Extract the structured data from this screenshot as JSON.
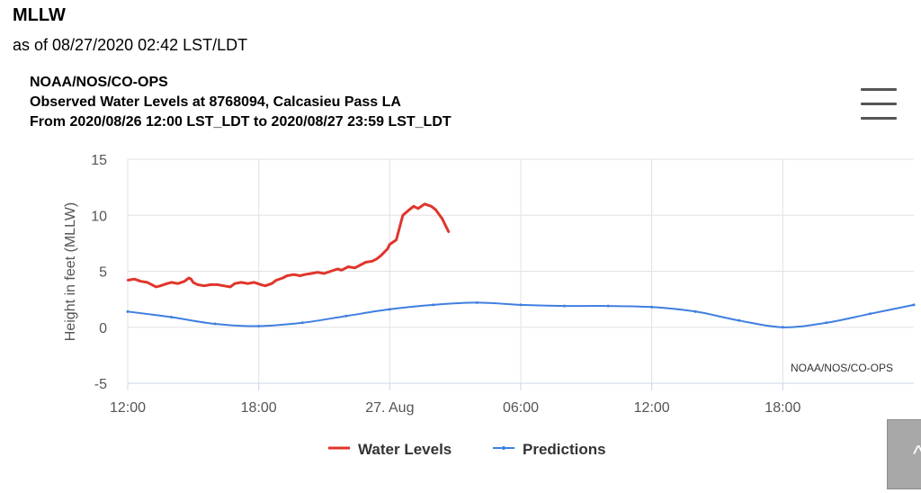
{
  "page": {
    "title": "MLLW",
    "as_of": "as of 08/27/2020 02:42 LST/LDT"
  },
  "chart_header": {
    "line1": "NOAA/NOS/CO-OPS",
    "line2": "Observed Water Levels at 8768094, Calcasieu Pass LA",
    "line3": "From 2020/08/26 12:00 LST_LDT to 2020/08/27 23:59 LST_LDT"
  },
  "menu_icon": "hamburger-menu-icon",
  "corner_button": {
    "icon": "chevron-up-icon",
    "glyph": "^"
  },
  "colors": {
    "water_levels": "#e0352b",
    "predictions": "#3f7fe0",
    "grid": "#e2e2e2",
    "axis_text": "#555555"
  },
  "chart_data": {
    "type": "line",
    "ylabel": "Height in feet (MLLW)",
    "ylim": [
      -5,
      15
    ],
    "yticks": [
      -5,
      0,
      5,
      10,
      15
    ],
    "xlim_hours": [
      0,
      36
    ],
    "xticks": [
      {
        "hour": 0,
        "label": "12:00"
      },
      {
        "hour": 6,
        "label": "18:00"
      },
      {
        "hour": 12,
        "label": "27. Aug"
      },
      {
        "hour": 18,
        "label": "06:00"
      },
      {
        "hour": 24,
        "label": "12:00"
      },
      {
        "hour": 30,
        "label": "18:00"
      }
    ],
    "credit": "NOAA/NOS/CO-OPS",
    "legend": [
      "Water Levels",
      "Predictions"
    ],
    "series": [
      {
        "name": "Water Levels",
        "x": [
          0,
          0.3,
          0.6,
          0.9,
          1.1,
          1.3,
          1.5,
          1.8,
          2.0,
          2.3,
          2.6,
          2.8,
          2.9,
          3.0,
          3.2,
          3.5,
          3.8,
          4.1,
          4.4,
          4.7,
          4.9,
          5.2,
          5.5,
          5.8,
          6.1,
          6.3,
          6.6,
          6.8,
          7.1,
          7.3,
          7.6,
          7.9,
          8.1,
          8.4,
          8.7,
          9.0,
          9.3,
          9.6,
          9.8,
          10.1,
          10.4,
          10.7,
          10.9,
          11.2,
          11.4,
          11.6,
          11.8,
          11.9,
          12.0,
          12.3,
          12.6,
          12.9,
          13.1,
          13.3,
          13.6,
          13.9,
          14.1,
          14.4,
          14.7
        ],
        "values": [
          4.2,
          4.3,
          4.1,
          4.0,
          3.8,
          3.6,
          3.7,
          3.9,
          4.0,
          3.9,
          4.1,
          4.4,
          4.3,
          4.0,
          3.8,
          3.7,
          3.8,
          3.8,
          3.7,
          3.6,
          3.9,
          4.0,
          3.9,
          4.0,
          3.8,
          3.7,
          3.9,
          4.2,
          4.4,
          4.6,
          4.7,
          4.6,
          4.7,
          4.8,
          4.9,
          4.8,
          5.0,
          5.2,
          5.1,
          5.4,
          5.3,
          5.6,
          5.8,
          5.9,
          6.1,
          6.4,
          6.8,
          7.0,
          7.4,
          7.8,
          10.0,
          10.5,
          10.8,
          10.6,
          11.0,
          10.8,
          10.5,
          9.7,
          8.5
        ]
      },
      {
        "name": "Predictions",
        "x": [
          0,
          2,
          4,
          6,
          8,
          10,
          12,
          14,
          16,
          18,
          20,
          22,
          24,
          26,
          28,
          30,
          32,
          34,
          36
        ],
        "values": [
          1.4,
          0.9,
          0.3,
          0.1,
          0.4,
          1.0,
          1.6,
          2.0,
          2.2,
          2.0,
          1.9,
          1.9,
          1.8,
          1.4,
          0.6,
          0.0,
          0.4,
          1.2,
          2.0
        ]
      }
    ]
  }
}
